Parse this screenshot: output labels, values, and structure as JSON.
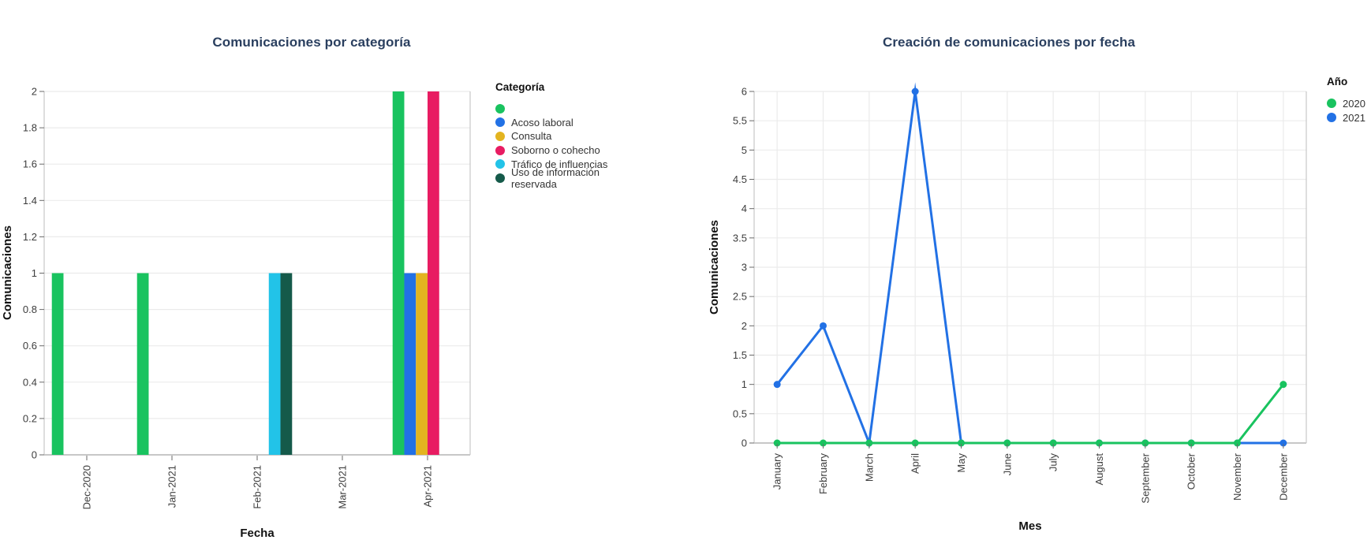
{
  "style": {
    "background": "#ffffff",
    "title_color": "#2a3f5f",
    "grid_color": "#ebebeb",
    "axis_line_color": "#c7c7c7",
    "tick_mark_color": "#696969",
    "tick_label_color": "#3d3d3d",
    "axis_title_color": "#111111"
  },
  "chart_data": [
    {
      "type": "bar",
      "title": "Comunicaciones por categoría",
      "xlabel": "Fecha",
      "ylabel": "Comunicaciones",
      "legend_title": "Categoría",
      "legend_position": "right",
      "grid": "horizontal",
      "categories": [
        "Dec-2020",
        "Jan-2021",
        "Feb-2021",
        "Mar-2021",
        "Apr-2021"
      ],
      "ylim": [
        0,
        2
      ],
      "yticks": [
        "0",
        "0.2",
        "0.4",
        "0.6",
        "0.8",
        "1",
        "1.2",
        "1.4",
        "1.6",
        "1.8",
        "2"
      ],
      "series": [
        {
          "name": "",
          "color": "#19C35F",
          "values": [
            1,
            1,
            0,
            0,
            2
          ]
        },
        {
          "name": "Acoso laboral",
          "color": "#2271E5",
          "values": [
            0,
            0,
            0,
            0,
            1
          ]
        },
        {
          "name": "Consulta",
          "color": "#E3B420",
          "values": [
            0,
            0,
            0,
            0,
            1
          ]
        },
        {
          "name": "Soborno o cohecho",
          "color": "#E81C62",
          "values": [
            0,
            0,
            0,
            0,
            2
          ]
        },
        {
          "name": "Tráfico de influencias",
          "color": "#22C3E8",
          "values": [
            0,
            0,
            1,
            0,
            0
          ]
        },
        {
          "name": "Uso de información reservada",
          "color": "#155A4A",
          "values": [
            0,
            0,
            1,
            0,
            0
          ]
        }
      ]
    },
    {
      "type": "line",
      "title": "Creación de comunicaciones por fecha",
      "xlabel": "Mes",
      "ylabel": "Comunicaciones",
      "legend_title": "Año",
      "legend_position": "right",
      "grid": "both",
      "categories": [
        "January",
        "February",
        "March",
        "April",
        "May",
        "June",
        "July",
        "August",
        "September",
        "October",
        "November",
        "December"
      ],
      "ylim": [
        0,
        6
      ],
      "yticks": [
        "0",
        "0.5",
        "1",
        "1.5",
        "2",
        "2.5",
        "3",
        "3.5",
        "4",
        "4.5",
        "5",
        "5.5",
        "6"
      ],
      "series": [
        {
          "name": "2020",
          "color": "#19C35F",
          "values": [
            0,
            0,
            0,
            0,
            0,
            0,
            0,
            0,
            0,
            0,
            0,
            1
          ]
        },
        {
          "name": "2021",
          "color": "#2271E5",
          "values": [
            1,
            2,
            0,
            6,
            0,
            0,
            0,
            0,
            0,
            0,
            0,
            0
          ]
        }
      ]
    }
  ]
}
